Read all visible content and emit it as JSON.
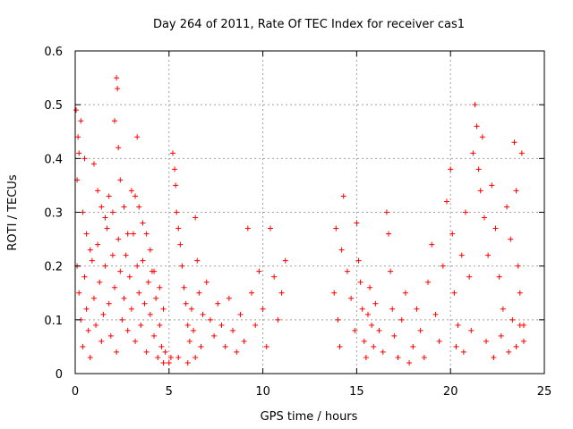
{
  "chart_data": {
    "type": "scatter",
    "title": "Day 264 of 2011, Rate Of TEC Index for receiver cas1",
    "xlabel": "GPS time / hours",
    "ylabel": "ROTI / TECUs",
    "xlim": [
      0,
      25
    ],
    "ylim": [
      0,
      0.6
    ],
    "xticks": [
      0,
      5,
      10,
      15,
      20,
      25
    ],
    "yticks": [
      0,
      0.1,
      0.2,
      0.3,
      0.4,
      0.5,
      0.6
    ],
    "xtick_labels": [
      "0",
      "5",
      "10",
      "15",
      "20",
      "25"
    ],
    "ytick_labels": [
      "0",
      "0.1",
      "0.2",
      "0.3",
      "0.4",
      "0.5",
      "0.6"
    ],
    "grid": true,
    "legend": "none",
    "marker": "+",
    "color": "#ff0000",
    "series": [
      {
        "values": [
          [
            0.05,
            0.49
          ],
          [
            0.15,
            0.44
          ],
          [
            0.2,
            0.41
          ],
          [
            0.1,
            0.36
          ],
          [
            0.3,
            0.47
          ],
          [
            0.5,
            0.4
          ],
          [
            0.4,
            0.3
          ],
          [
            0.6,
            0.26
          ],
          [
            0.8,
            0.23
          ],
          [
            1.0,
            0.39
          ],
          [
            1.2,
            0.34
          ],
          [
            1.4,
            0.31
          ],
          [
            1.6,
            0.29
          ],
          [
            1.8,
            0.33
          ],
          [
            2.0,
            0.3
          ],
          [
            2.1,
            0.47
          ],
          [
            2.2,
            0.55
          ],
          [
            2.25,
            0.53
          ],
          [
            2.3,
            0.42
          ],
          [
            2.4,
            0.36
          ],
          [
            2.6,
            0.31
          ],
          [
            2.8,
            0.26
          ],
          [
            3.0,
            0.34
          ],
          [
            3.2,
            0.33
          ],
          [
            3.3,
            0.44
          ],
          [
            3.4,
            0.31
          ],
          [
            3.6,
            0.28
          ],
          [
            3.8,
            0.26
          ],
          [
            4.0,
            0.23
          ],
          [
            4.2,
            0.19
          ],
          [
            4.5,
            0.16
          ],
          [
            4.7,
            0.12
          ],
          [
            0.1,
            0.2
          ],
          [
            0.2,
            0.15
          ],
          [
            0.3,
            0.1
          ],
          [
            0.4,
            0.05
          ],
          [
            0.5,
            0.18
          ],
          [
            0.6,
            0.12
          ],
          [
            0.7,
            0.08
          ],
          [
            0.8,
            0.03
          ],
          [
            0.9,
            0.21
          ],
          [
            1.0,
            0.14
          ],
          [
            1.1,
            0.09
          ],
          [
            1.2,
            0.24
          ],
          [
            1.3,
            0.17
          ],
          [
            1.4,
            0.06
          ],
          [
            1.5,
            0.11
          ],
          [
            1.6,
            0.2
          ],
          [
            1.7,
            0.27
          ],
          [
            1.8,
            0.13
          ],
          [
            1.9,
            0.07
          ],
          [
            2.0,
            0.22
          ],
          [
            2.1,
            0.16
          ],
          [
            2.2,
            0.04
          ],
          [
            2.3,
            0.25
          ],
          [
            2.4,
            0.19
          ],
          [
            2.5,
            0.1
          ],
          [
            2.6,
            0.14
          ],
          [
            2.7,
            0.22
          ],
          [
            2.8,
            0.08
          ],
          [
            2.9,
            0.18
          ],
          [
            3.0,
            0.12
          ],
          [
            3.1,
            0.26
          ],
          [
            3.2,
            0.06
          ],
          [
            3.3,
            0.2
          ],
          [
            3.4,
            0.15
          ],
          [
            3.5,
            0.09
          ],
          [
            3.6,
            0.21
          ],
          [
            3.7,
            0.13
          ],
          [
            3.8,
            0.04
          ],
          [
            3.9,
            0.17
          ],
          [
            4.0,
            0.11
          ],
          [
            4.1,
            0.19
          ],
          [
            4.2,
            0.07
          ],
          [
            4.3,
            0.14
          ],
          [
            4.4,
            0.03
          ],
          [
            4.5,
            0.09
          ],
          [
            4.6,
            0.05
          ],
          [
            4.7,
            0.02
          ],
          [
            4.8,
            0.04
          ],
          [
            5.0,
            0.02
          ],
          [
            5.1,
            0.03
          ],
          [
            5.2,
            0.41
          ],
          [
            5.3,
            0.38
          ],
          [
            5.35,
            0.35
          ],
          [
            5.4,
            0.3
          ],
          [
            5.5,
            0.27
          ],
          [
            5.6,
            0.24
          ],
          [
            5.7,
            0.2
          ],
          [
            5.8,
            0.16
          ],
          [
            5.9,
            0.13
          ],
          [
            6.0,
            0.09
          ],
          [
            6.1,
            0.06
          ],
          [
            6.2,
            0.12
          ],
          [
            6.3,
            0.08
          ],
          [
            6.4,
            0.29
          ],
          [
            6.5,
            0.21
          ],
          [
            6.6,
            0.15
          ],
          [
            6.7,
            0.05
          ],
          [
            6.8,
            0.11
          ],
          [
            7.0,
            0.17
          ],
          [
            7.2,
            0.1
          ],
          [
            7.4,
            0.07
          ],
          [
            7.6,
            0.13
          ],
          [
            7.8,
            0.09
          ],
          [
            8.0,
            0.05
          ],
          [
            8.2,
            0.14
          ],
          [
            8.4,
            0.08
          ],
          [
            8.6,
            0.04
          ],
          [
            8.8,
            0.11
          ],
          [
            9.0,
            0.06
          ],
          [
            9.2,
            0.27
          ],
          [
            9.4,
            0.15
          ],
          [
            9.6,
            0.09
          ],
          [
            9.8,
            0.19
          ],
          [
            10.0,
            0.12
          ],
          [
            10.2,
            0.05
          ],
          [
            10.4,
            0.27
          ],
          [
            10.6,
            0.18
          ],
          [
            10.8,
            0.1
          ],
          [
            11.0,
            0.15
          ],
          [
            11.2,
            0.21
          ],
          [
            5.5,
            0.03
          ],
          [
            6.0,
            0.02
          ],
          [
            6.4,
            0.03
          ],
          [
            13.8,
            0.15
          ],
          [
            13.9,
            0.27
          ],
          [
            14.0,
            0.1
          ],
          [
            14.1,
            0.05
          ],
          [
            14.2,
            0.23
          ],
          [
            14.3,
            0.33
          ],
          [
            14.5,
            0.19
          ],
          [
            14.7,
            0.14
          ],
          [
            14.9,
            0.08
          ],
          [
            15.0,
            0.28
          ],
          [
            15.1,
            0.21
          ],
          [
            15.2,
            0.17
          ],
          [
            15.3,
            0.12
          ],
          [
            15.4,
            0.06
          ],
          [
            15.5,
            0.03
          ],
          [
            15.6,
            0.11
          ],
          [
            15.7,
            0.16
          ],
          [
            15.8,
            0.09
          ],
          [
            15.9,
            0.05
          ],
          [
            16.0,
            0.13
          ],
          [
            16.2,
            0.08
          ],
          [
            16.4,
            0.04
          ],
          [
            16.6,
            0.3
          ],
          [
            16.7,
            0.26
          ],
          [
            16.8,
            0.19
          ],
          [
            16.9,
            0.12
          ],
          [
            17.0,
            0.07
          ],
          [
            17.2,
            0.03
          ],
          [
            17.4,
            0.1
          ],
          [
            17.6,
            0.15
          ],
          [
            17.8,
            0.02
          ],
          [
            18.0,
            0.05
          ],
          [
            18.2,
            0.12
          ],
          [
            18.4,
            0.08
          ],
          [
            18.6,
            0.03
          ],
          [
            18.8,
            0.17
          ],
          [
            19.0,
            0.24
          ],
          [
            19.2,
            0.11
          ],
          [
            19.4,
            0.06
          ],
          [
            19.6,
            0.2
          ],
          [
            19.8,
            0.32
          ],
          [
            20.0,
            0.38
          ],
          [
            20.1,
            0.26
          ],
          [
            20.2,
            0.15
          ],
          [
            20.4,
            0.09
          ],
          [
            20.6,
            0.22
          ],
          [
            20.8,
            0.3
          ],
          [
            21.0,
            0.18
          ],
          [
            21.2,
            0.41
          ],
          [
            21.3,
            0.5
          ],
          [
            21.4,
            0.46
          ],
          [
            21.5,
            0.38
          ],
          [
            21.6,
            0.34
          ],
          [
            21.7,
            0.44
          ],
          [
            21.8,
            0.29
          ],
          [
            22.0,
            0.22
          ],
          [
            22.2,
            0.35
          ],
          [
            22.4,
            0.27
          ],
          [
            22.6,
            0.18
          ],
          [
            22.8,
            0.12
          ],
          [
            23.0,
            0.31
          ],
          [
            23.2,
            0.25
          ],
          [
            23.4,
            0.43
          ],
          [
            23.5,
            0.34
          ],
          [
            23.6,
            0.2
          ],
          [
            23.7,
            0.15
          ],
          [
            23.8,
            0.41
          ],
          [
            23.9,
            0.09
          ],
          [
            20.3,
            0.05
          ],
          [
            20.7,
            0.04
          ],
          [
            21.1,
            0.08
          ],
          [
            21.9,
            0.06
          ],
          [
            22.3,
            0.03
          ],
          [
            22.7,
            0.07
          ],
          [
            23.1,
            0.04
          ],
          [
            23.3,
            0.1
          ],
          [
            23.5,
            0.05
          ],
          [
            23.7,
            0.09
          ],
          [
            23.9,
            0.06
          ]
        ]
      }
    ]
  }
}
